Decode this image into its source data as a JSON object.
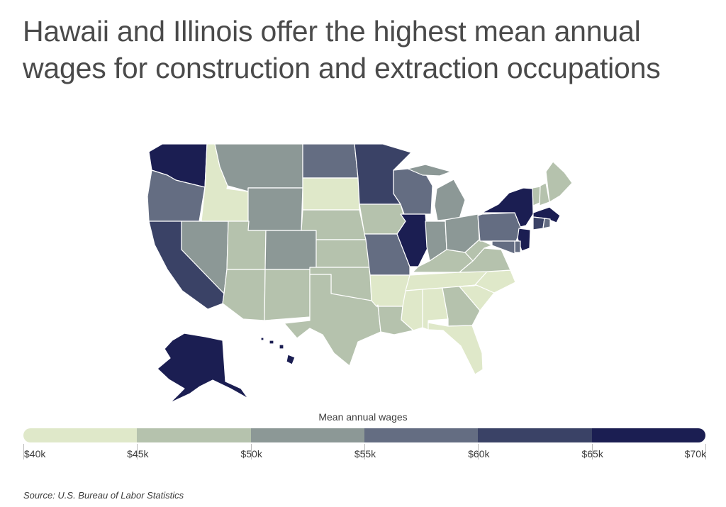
{
  "title": "Hawaii and Illinois offer the highest mean annual wages for construction and extraction occupations",
  "legend": {
    "title": "Mean annual wages",
    "ticks": [
      "$40k",
      "$45k",
      "$50k",
      "$55k",
      "$60k",
      "$65k",
      "$70k"
    ],
    "colors": [
      "#dfe8c9",
      "#b5c2ad",
      "#8c9896",
      "#646d82",
      "#3a4266",
      "#1b1e52"
    ]
  },
  "map_data": {
    "bin_ranges_k": [
      [
        40,
        45
      ],
      [
        45,
        50
      ],
      [
        50,
        55
      ],
      [
        55,
        60
      ],
      [
        60,
        65
      ],
      [
        65,
        70
      ]
    ],
    "states": {
      "WA": 5,
      "OR": 3,
      "CA": 4,
      "NV": 2,
      "ID": 0,
      "MT": 2,
      "WY": 2,
      "UT": 1,
      "AZ": 1,
      "CO": 2,
      "NM": 1,
      "ND": 3,
      "SD": 0,
      "NE": 1,
      "KS": 1,
      "OK": 1,
      "TX": 1,
      "MN": 4,
      "IA": 1,
      "MO": 3,
      "AR": 0,
      "LA": 1,
      "WI": 3,
      "IL": 5,
      "MI": 2,
      "IN": 2,
      "OH": 2,
      "KY": 1,
      "TN": 0,
      "MS": 0,
      "AL": 0,
      "GA": 1,
      "FL": 0,
      "SC": 0,
      "NC": 0,
      "VA": 1,
      "WV": 1,
      "PA": 3,
      "NY": 5,
      "VT": 1,
      "NH": 1,
      "ME": 1,
      "MA": 5,
      "RI": 3,
      "CT": 4,
      "NJ": 5,
      "DE": 3,
      "MD": 3,
      "AK": 5,
      "HI": 5
    }
  },
  "source": "Source:  U.S. Bureau of Labor Statistics"
}
